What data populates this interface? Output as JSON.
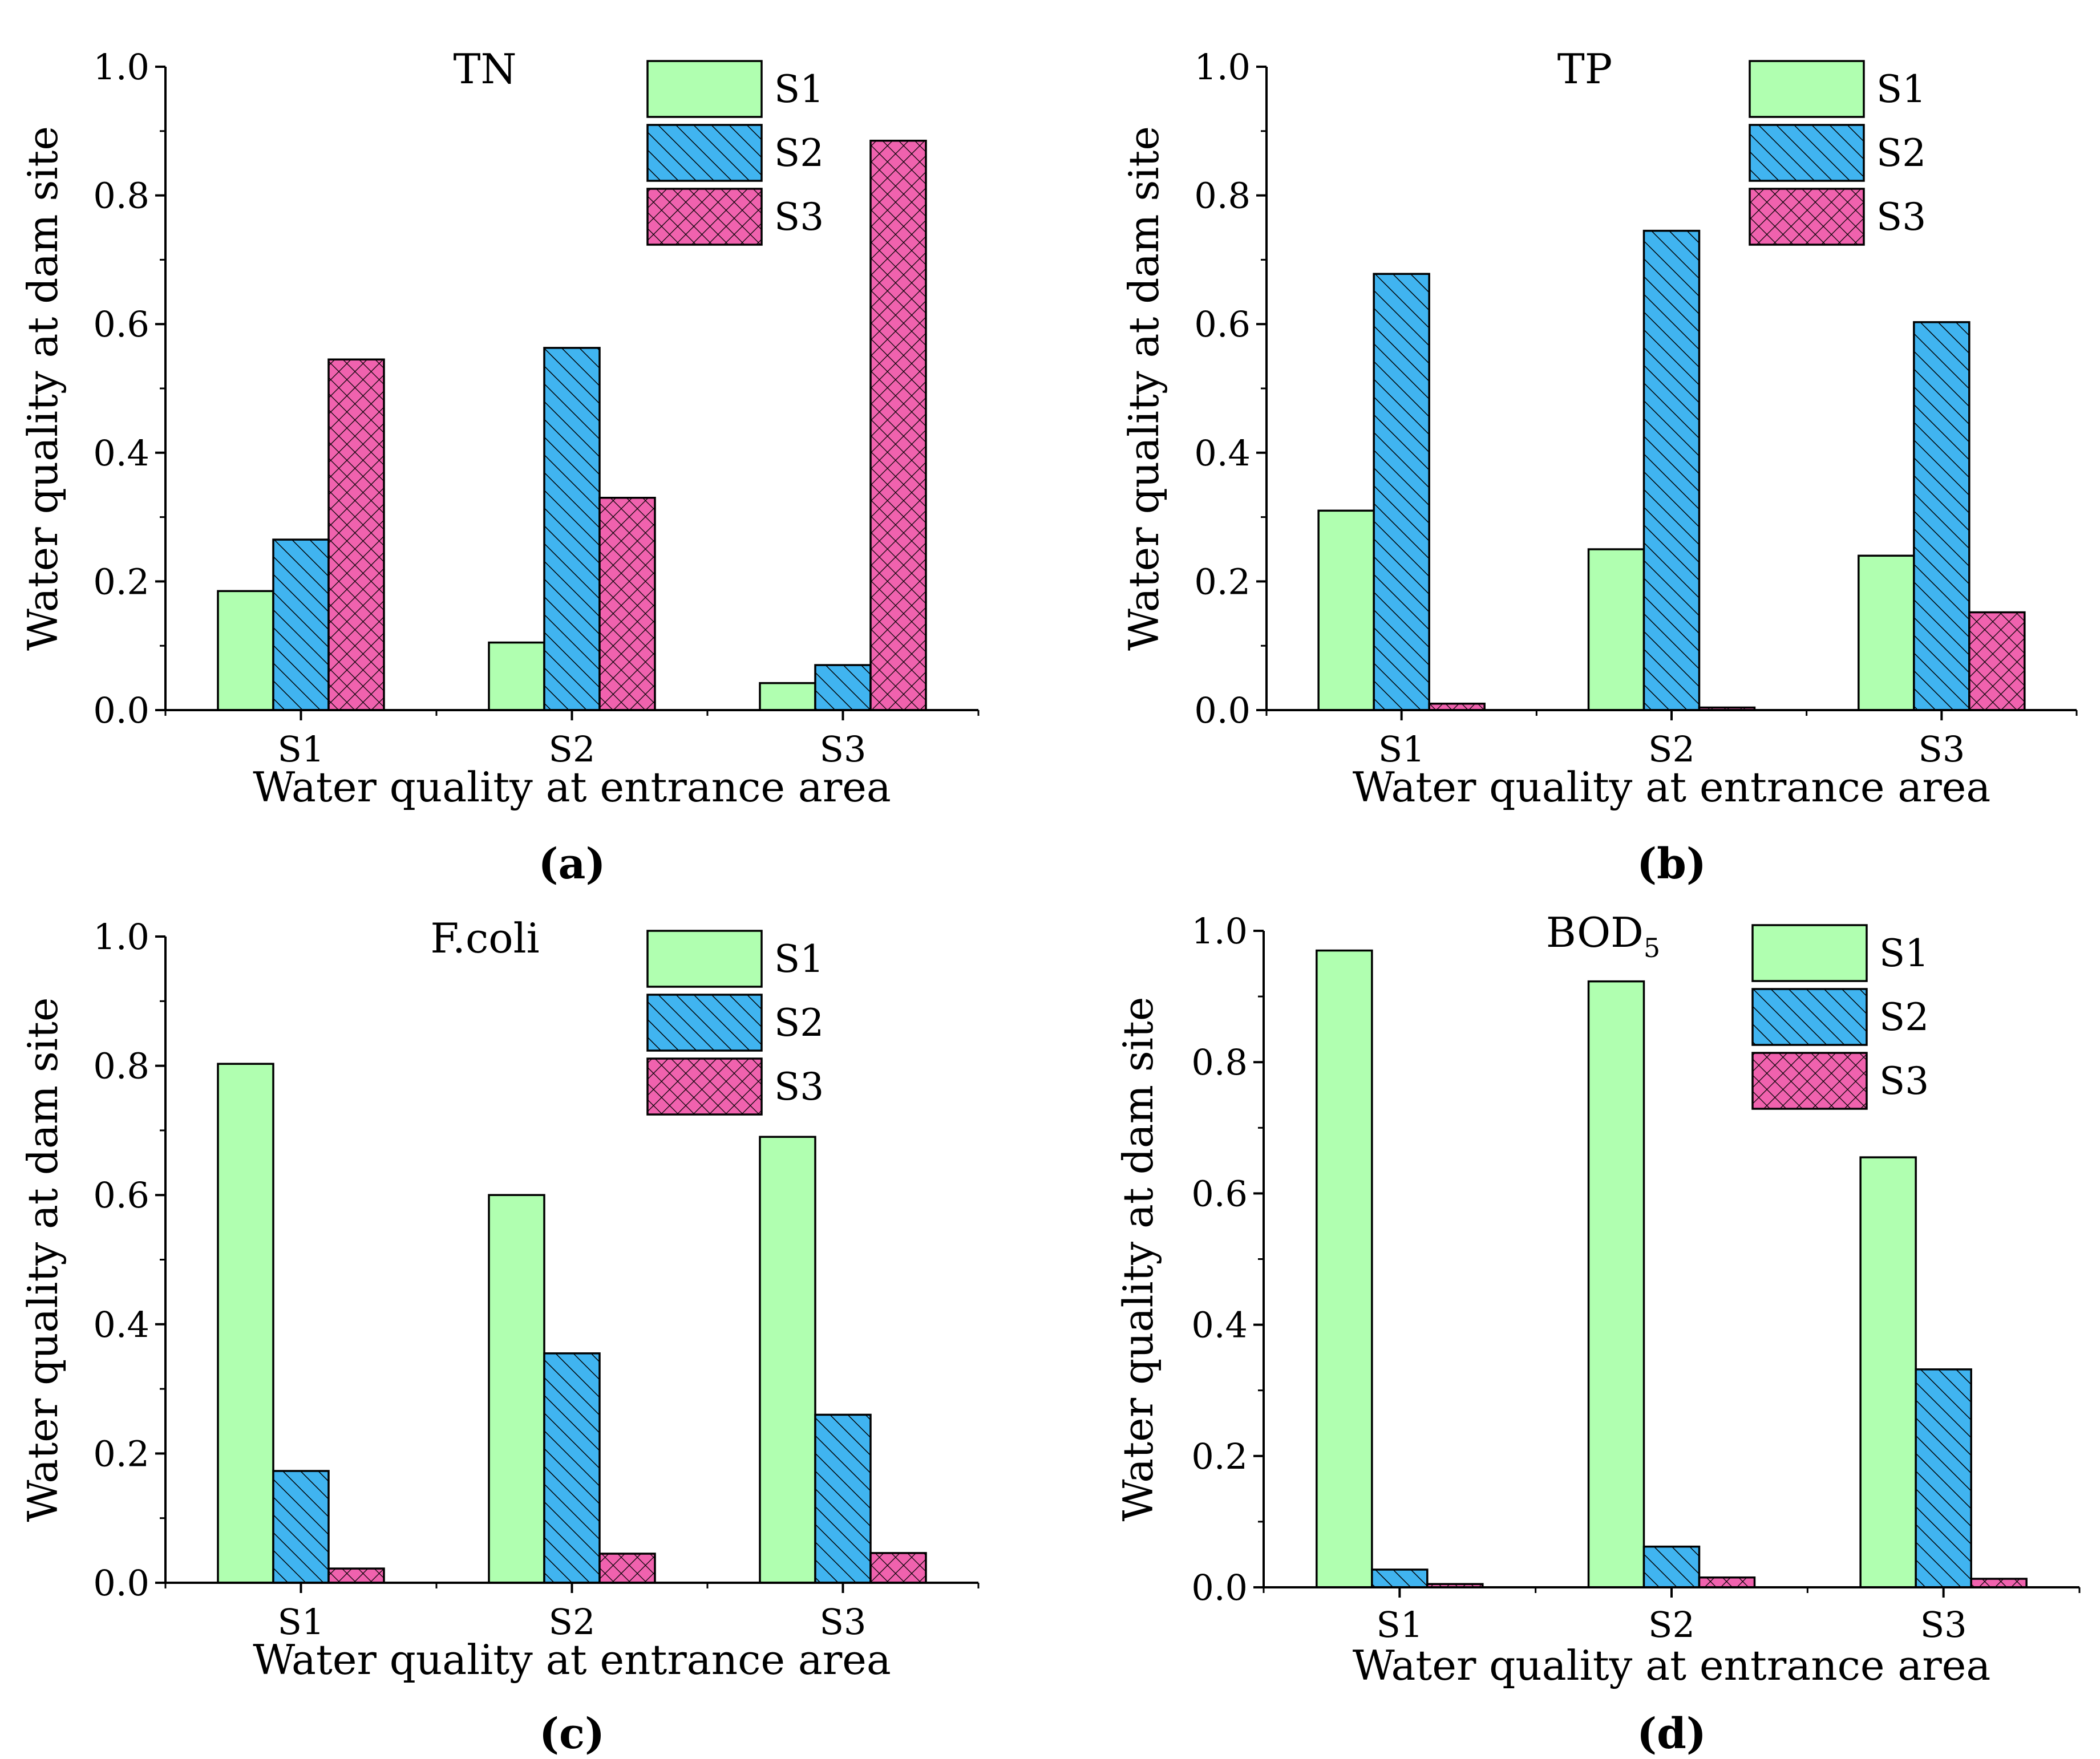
{
  "series_styles": [
    {
      "name": "S1",
      "fill": "#b0ffb0",
      "pattern": "none"
    },
    {
      "name": "S2",
      "fill": "#40b4f0",
      "pattern": "diagonal-hatch"
    },
    {
      "name": "S3",
      "fill": "#f062ae",
      "pattern": "cross-hatch"
    }
  ],
  "chart_data": [
    {
      "type": "bar",
      "panel": "(a)",
      "title": "TN",
      "title_sub": "",
      "xlabel": "Water quality at entrance area",
      "ylabel": "Water quality at dam site",
      "categories": [
        "S1",
        "S2",
        "S3"
      ],
      "ylim": [
        0,
        1.0
      ],
      "yticks": [
        "0.0",
        "0.2",
        "0.4",
        "0.6",
        "0.8",
        "1.0"
      ],
      "legend": [
        "S1",
        "S2",
        "S3"
      ],
      "series": [
        {
          "name": "S1",
          "values": [
            0.185,
            0.105,
            0.042
          ]
        },
        {
          "name": "S2",
          "values": [
            0.265,
            0.563,
            0.07
          ]
        },
        {
          "name": "S3",
          "values": [
            0.545,
            0.33,
            0.885
          ]
        }
      ]
    },
    {
      "type": "bar",
      "panel": "(b)",
      "title": "TP",
      "title_sub": "",
      "xlabel": "Water quality at entrance area",
      "ylabel": "Water quality at dam site",
      "categories": [
        "S1",
        "S2",
        "S3"
      ],
      "ylim": [
        0,
        1.0
      ],
      "yticks": [
        "0.0",
        "0.2",
        "0.4",
        "0.6",
        "0.8",
        "1.0"
      ],
      "legend": [
        "S1",
        "S2",
        "S3"
      ],
      "series": [
        {
          "name": "S1",
          "values": [
            0.31,
            0.25,
            0.24
          ]
        },
        {
          "name": "S2",
          "values": [
            0.678,
            0.745,
            0.603
          ]
        },
        {
          "name": "S3",
          "values": [
            0.01,
            0.004,
            0.152
          ]
        }
      ]
    },
    {
      "type": "bar",
      "panel": "(c)",
      "title": "F.coli",
      "title_sub": "",
      "xlabel": "Water quality at entrance area",
      "ylabel": "Water quality at dam site",
      "categories": [
        "S1",
        "S2",
        "S3"
      ],
      "ylim": [
        0,
        1.0
      ],
      "yticks": [
        "0.0",
        "0.2",
        "0.4",
        "0.6",
        "0.8",
        "1.0"
      ],
      "legend": [
        "S1",
        "S2",
        "S3"
      ],
      "series": [
        {
          "name": "S1",
          "values": [
            0.803,
            0.6,
            0.69
          ]
        },
        {
          "name": "S2",
          "values": [
            0.173,
            0.355,
            0.26
          ]
        },
        {
          "name": "S3",
          "values": [
            0.022,
            0.045,
            0.046
          ]
        }
      ]
    },
    {
      "type": "bar",
      "panel": "(d)",
      "title": "BOD",
      "title_sub": "5",
      "xlabel": "Water quality at entrance area",
      "ylabel": "Water quality at dam site",
      "categories": [
        "S1",
        "S2",
        "S3"
      ],
      "ylim": [
        0,
        1.0
      ],
      "yticks": [
        "0.0",
        "0.2",
        "0.4",
        "0.6",
        "0.8",
        "1.0"
      ],
      "legend": [
        "S1",
        "S2",
        "S3"
      ],
      "series": [
        {
          "name": "S1",
          "values": [
            0.97,
            0.923,
            0.655
          ]
        },
        {
          "name": "S2",
          "values": [
            0.027,
            0.062,
            0.332
          ]
        },
        {
          "name": "S3",
          "values": [
            0.005,
            0.015,
            0.013
          ]
        }
      ]
    }
  ]
}
